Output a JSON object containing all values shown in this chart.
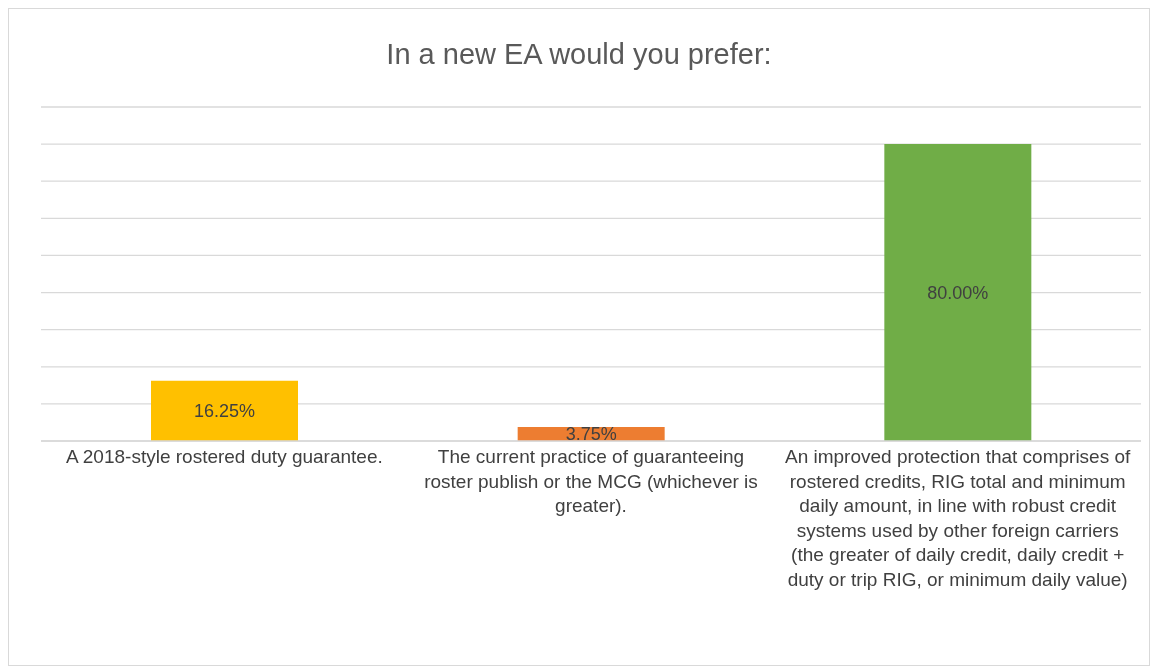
{
  "chart_data": {
    "type": "bar",
    "title": "In a new EA would you prefer:",
    "categories": [
      "A 2018-style rostered duty guarantee.",
      "The current practice of guaranteeing roster publish or the MCG (whichever is greater).",
      "An improved protection that comprises of rostered credits, RIG total and minimum daily amount, in line with robust credit systems used by other foreign carriers (the greater of daily credit, daily credit + duty or trip RIG, or minimum daily value)"
    ],
    "values": [
      16.25,
      3.75,
      80
    ],
    "colors": [
      "#ffc000",
      "#ed7d31",
      "#70ad47"
    ],
    "value_labels": [
      "16.25%",
      "3.75%",
      "80.00%"
    ],
    "ylim": [
      0,
      90
    ],
    "grid": "y",
    "tick_labels": "x"
  }
}
